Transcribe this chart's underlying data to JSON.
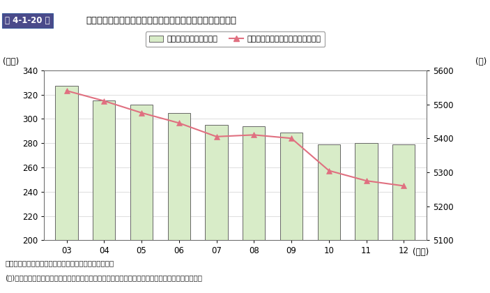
{
  "years": [
    "03",
    "04",
    "05",
    "06",
    "07",
    "08",
    "09",
    "10",
    "11",
    "12"
  ],
  "bar_values": [
    327,
    315,
    312,
    305,
    295,
    294,
    289,
    279,
    280,
    279
  ],
  "line_values": [
    5540,
    5510,
    5475,
    5445,
    5405,
    5410,
    5400,
    5305,
    5275,
    5260
  ],
  "bar_color": "#d8ecc8",
  "bar_edge_color": "#666666",
  "line_color": "#e07080",
  "marker_color": "#e07080",
  "title": "商工会議所の補助金収入と経営指導に従事する職員数の推移",
  "title_prefix": "第 4-1-20 図",
  "ylabel_left": "(億円)",
  "ylabel_right": "(人)",
  "xlabel": "(年度)",
  "ylim_left": [
    200,
    340
  ],
  "ylim_right": [
    5100,
    5600
  ],
  "yticks_left": [
    200,
    220,
    240,
    260,
    280,
    300,
    320,
    340
  ],
  "yticks_right": [
    5100,
    5200,
    5300,
    5400,
    5500,
    5600
  ],
  "legend_bar": "都道府県補助金（左軸）",
  "legend_line": "経営指導に従事する職員数（右軸）",
  "source_text": "資料：日本商工会議所提供資料に基づき中小企業庁作成",
  "note_text": "(注)「経営指導に従事する職員」とは、経営指導員、補助員、記帳専門職員、記帳指導職員をいう。",
  "background_color": "#ffffff",
  "header_bg": "#4a4a8a",
  "header_text_color": "#ffffff",
  "title_color": "#000000",
  "header_border_color": "#3a5a9a"
}
